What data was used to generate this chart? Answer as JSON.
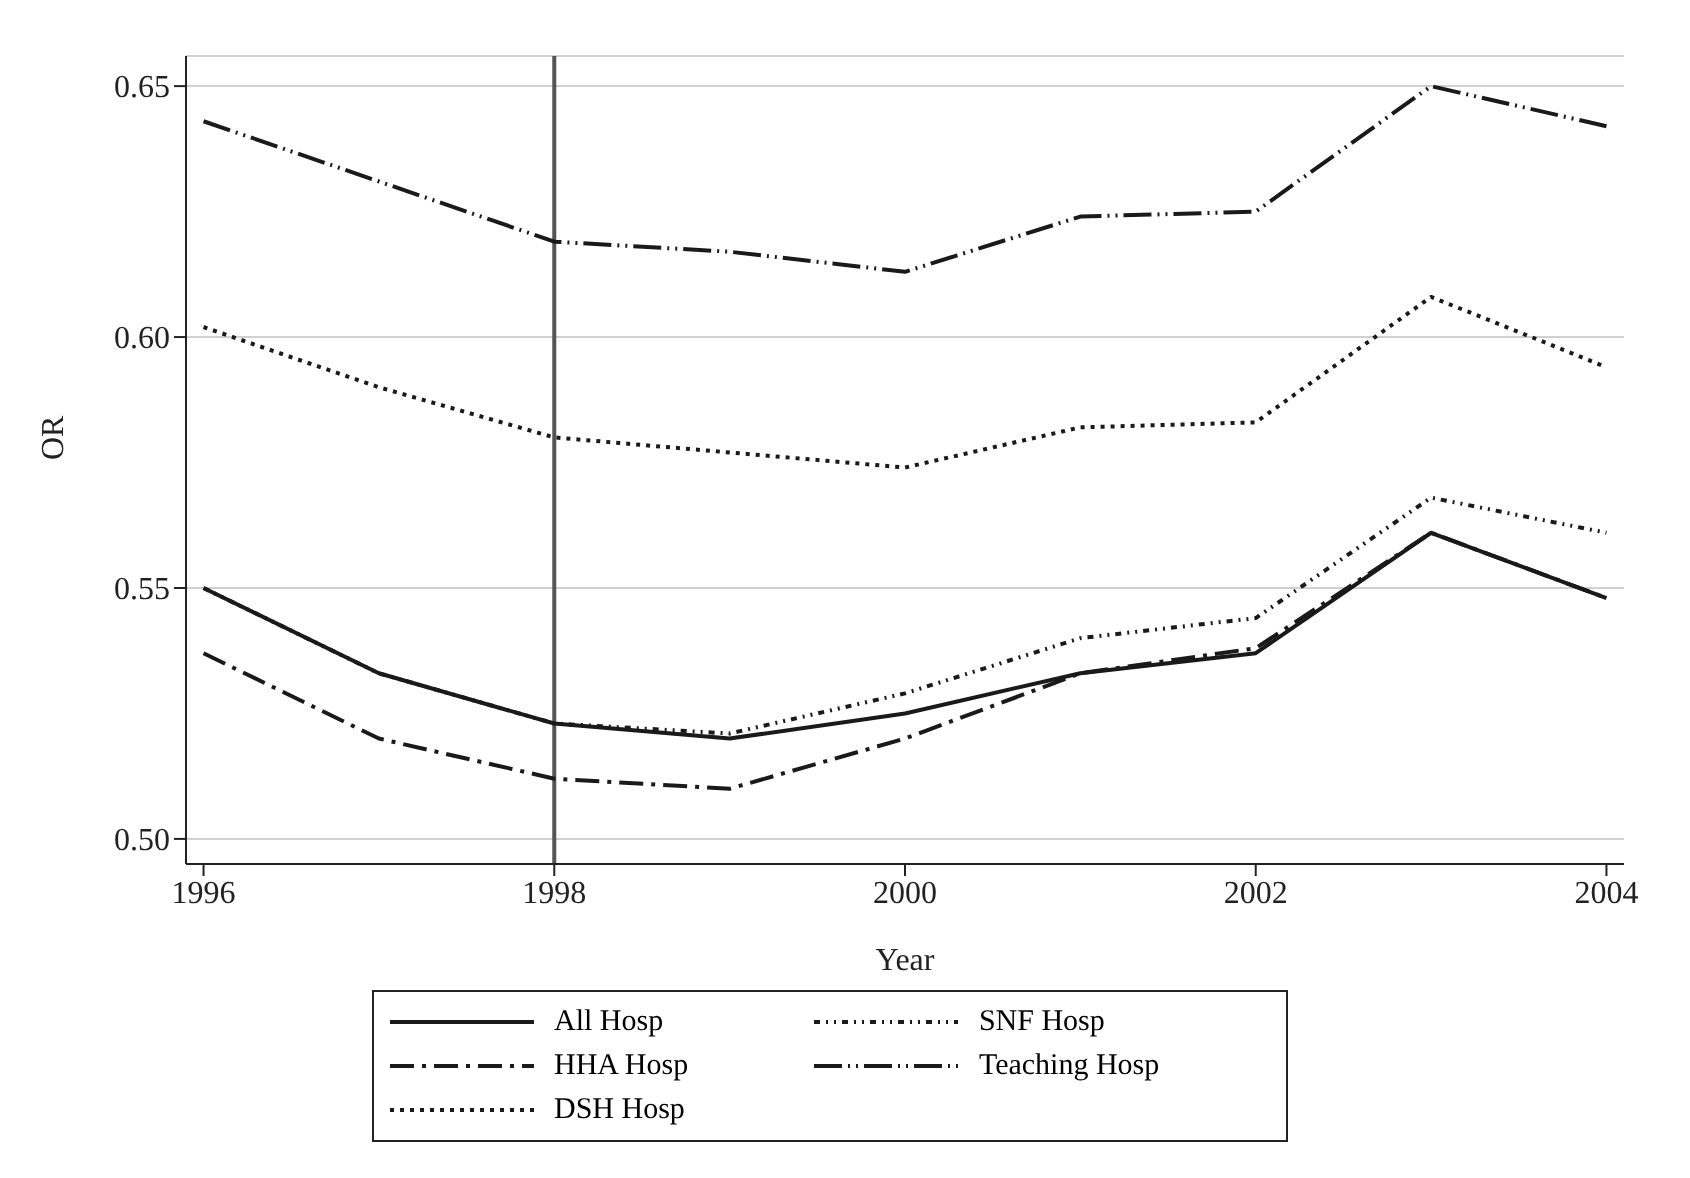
{
  "chart_data": {
    "type": "line",
    "xlabel": "Year",
    "ylabel": "OR",
    "x": [
      1996,
      1997,
      1998,
      1999,
      2000,
      2001,
      2002,
      2003,
      2004
    ],
    "series": [
      {
        "name": "All Hosp",
        "color": "#1a1a1a",
        "line_style": "solid",
        "values": [
          0.55,
          0.533,
          0.523,
          0.52,
          0.525,
          0.533,
          0.537,
          0.561,
          0.548
        ]
      },
      {
        "name": "HHA Hosp",
        "color": "#1a1a1a",
        "line_style": "dashdot",
        "values": [
          0.537,
          0.52,
          0.512,
          0.51,
          0.52,
          0.533,
          0.538,
          0.561,
          0.548
        ]
      },
      {
        "name": "DSH Hosp",
        "color": "#1a1a1a",
        "line_style": "dotted",
        "values": [
          0.602,
          0.59,
          0.58,
          0.577,
          0.574,
          0.582,
          0.583,
          0.608,
          0.594
        ]
      },
      {
        "name": "SNF Hosp",
        "color": "#1a1a1a",
        "line_style": "dashdotdot",
        "values": [
          0.55,
          0.533,
          0.523,
          0.521,
          0.529,
          0.54,
          0.544,
          0.568,
          0.561
        ]
      },
      {
        "name": "Teaching Hosp",
        "color": "#1a1a1a",
        "line_style": "longdashdotdot",
        "values": [
          0.643,
          0.631,
          0.619,
          0.617,
          0.613,
          0.624,
          0.625,
          0.65,
          0.642
        ]
      }
    ],
    "xlim": [
      1995.9,
      2004.1
    ],
    "xticks": [
      1996,
      1998,
      2000,
      2002,
      2004
    ],
    "ylim": [
      0.495,
      0.656
    ],
    "yticks": [
      {
        "value": 0.5,
        "label": "0.50"
      },
      {
        "value": 0.55,
        "label": "0.55"
      },
      {
        "value": 0.6,
        "label": "0.60"
      },
      {
        "value": 0.65,
        "label": "0.65"
      }
    ],
    "ref_lines": [
      {
        "axis": "x",
        "value": 1998,
        "color": "#555555"
      }
    ],
    "grid": "y",
    "legend": "bottom",
    "marker": "none"
  }
}
